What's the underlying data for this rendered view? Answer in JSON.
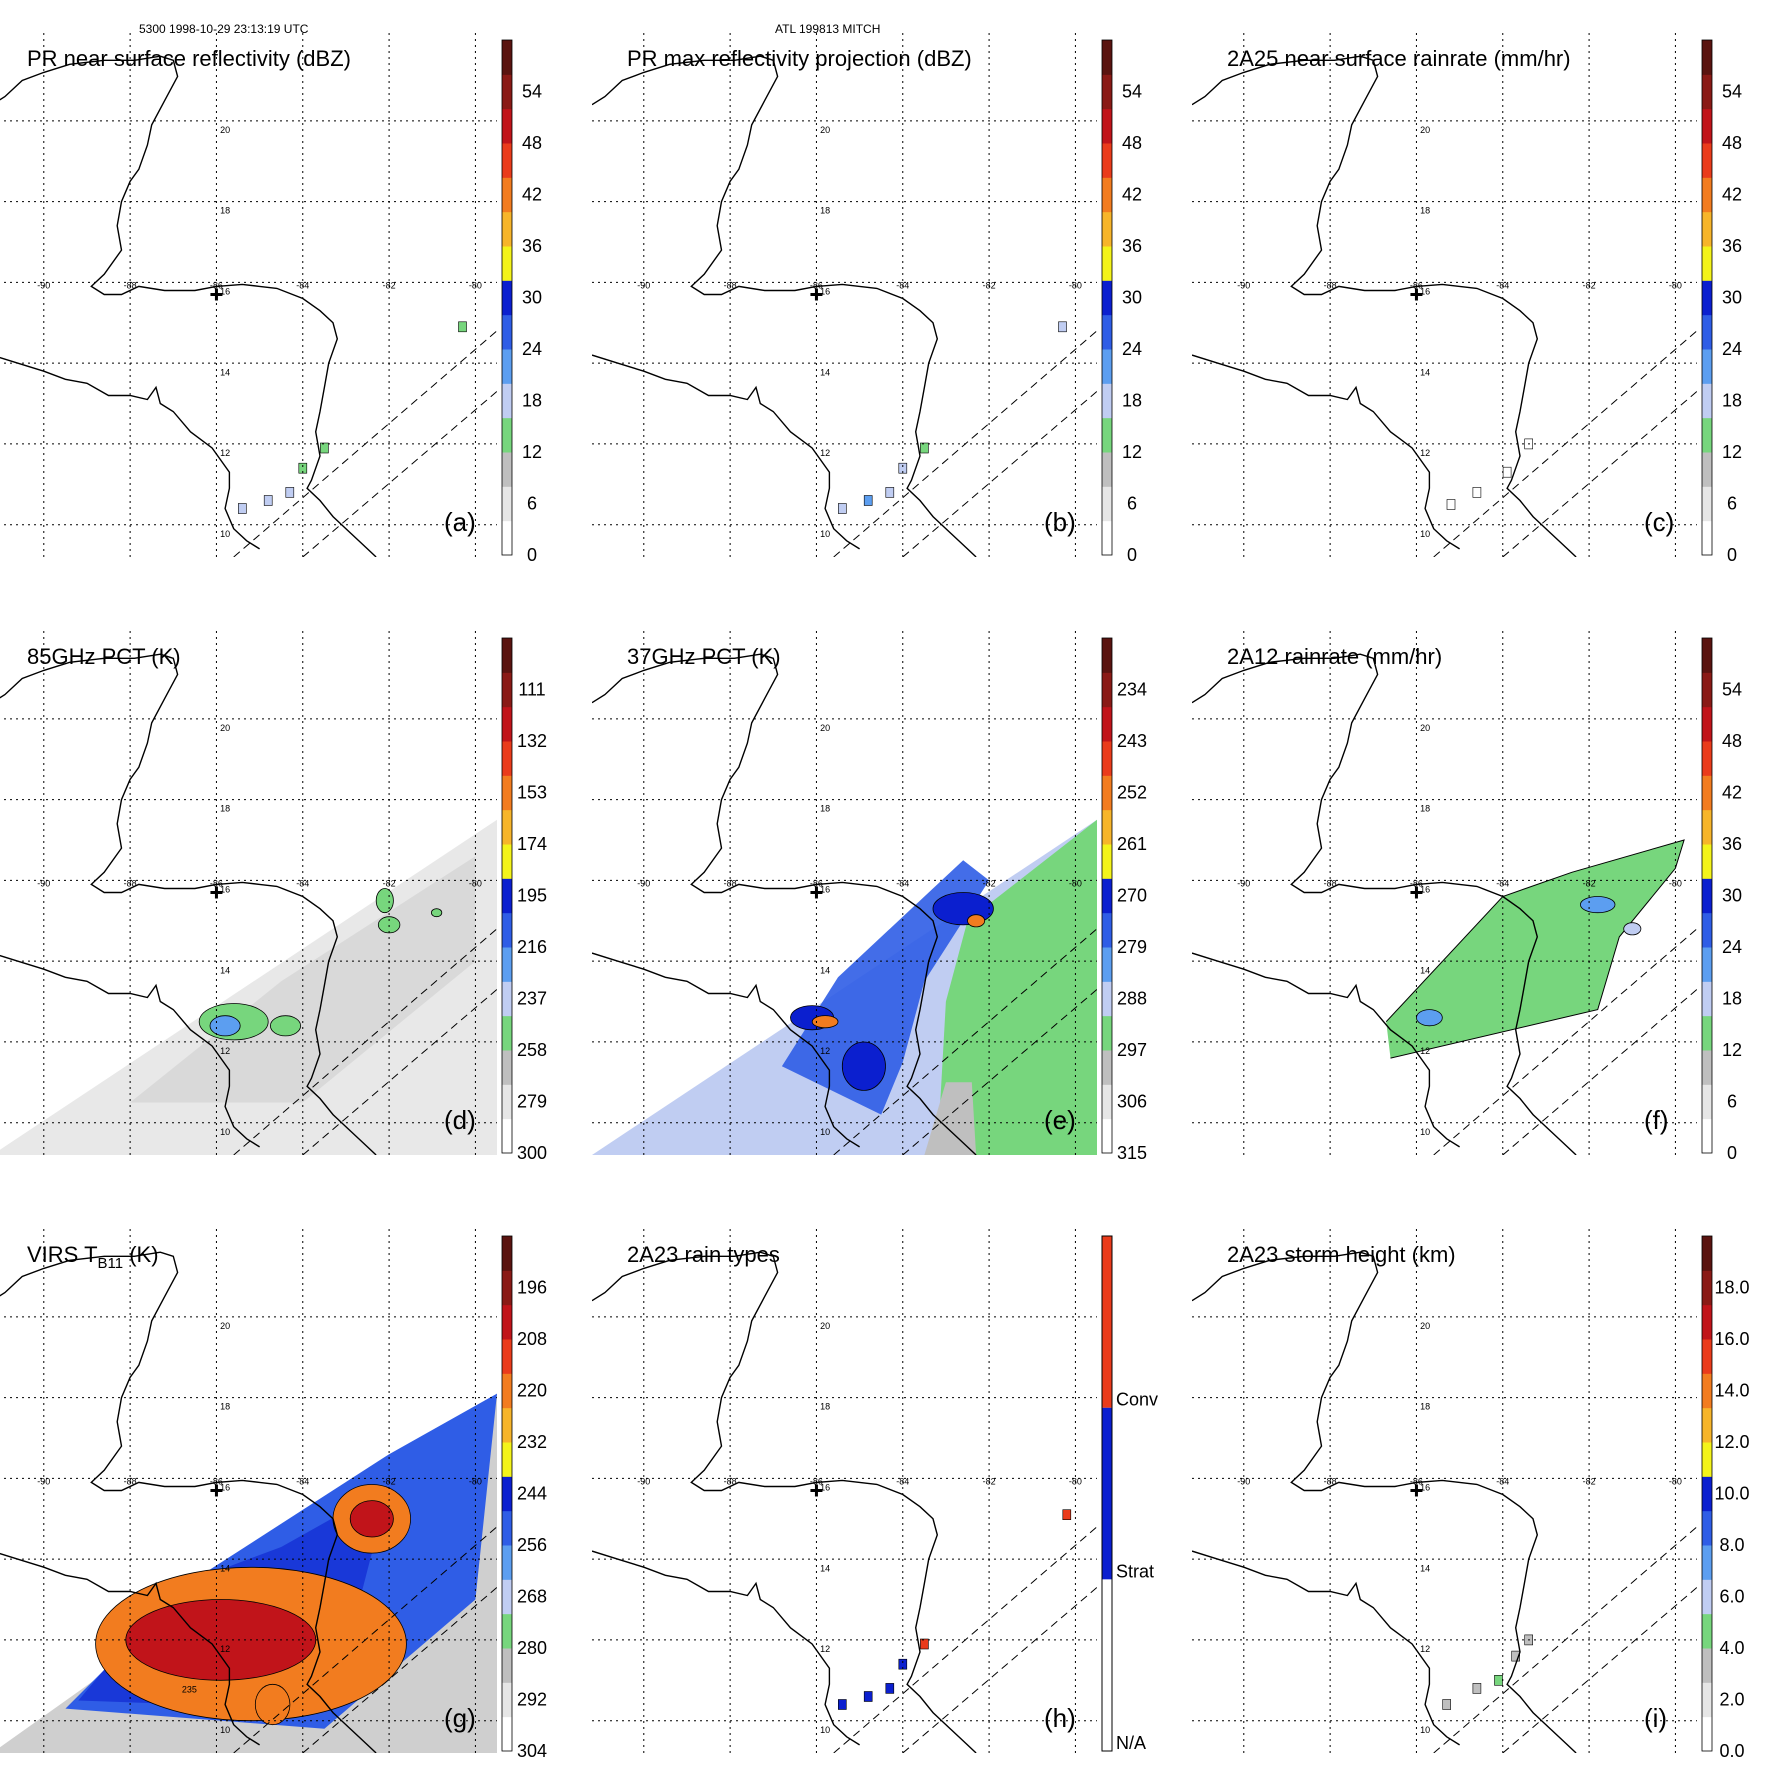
{
  "header": {
    "orbit_time": "5300 1998-10-29 23:13:19 UTC",
    "storm": "ATL 199813 MITCH"
  },
  "map": {
    "lon_labels": [
      "-90",
      "-88",
      "-86",
      "-84",
      "-82",
      "-80"
    ],
    "lat_labels": [
      "10",
      "12",
      "14",
      "16",
      "18",
      "20"
    ],
    "center_marker": "cross-icon"
  },
  "colors": {
    "white": "#ffffff",
    "gray_light": "#e6e6e6",
    "gray": "#bfbfbf",
    "green": "#77d67d",
    "blue_light": "#c0cdf2",
    "blue_mid": "#5c9ef0",
    "blue": "#2f5de6",
    "blue_dark": "#0b1fcf",
    "yellow": "#f4f41a",
    "orange_light": "#f7b52a",
    "orange": "#f27c1f",
    "red_orange": "#ea3b1b",
    "red": "#c1141a",
    "dark_red": "#8a1a16",
    "maroon": "#5a1410"
  },
  "chart_data": [
    {
      "id": "a",
      "type": "heatmap",
      "title": "PR near surface reflectivity (dBZ)",
      "label": "(a)",
      "colorbar_ticks": [
        "0",
        "6",
        "12",
        "18",
        "24",
        "30",
        "36",
        "42",
        "48",
        "54"
      ],
      "colorbar_range": [
        0,
        60
      ],
      "swath": "pr",
      "rain_cells": [
        {
          "lon": -85.4,
          "lat": 10.4,
          "value": 24
        },
        {
          "lon": -84.8,
          "lat": 10.6,
          "value": 27
        },
        {
          "lon": -84.3,
          "lat": 10.8,
          "value": 25
        },
        {
          "lon": -84.0,
          "lat": 11.4,
          "value": 20
        },
        {
          "lon": -83.5,
          "lat": 11.9,
          "value": 19
        },
        {
          "lon": -80.3,
          "lat": 14.9,
          "value": 22
        }
      ]
    },
    {
      "id": "b",
      "type": "heatmap",
      "title": "PR max reflectivity projection (dBZ)",
      "label": "(b)",
      "colorbar_ticks": [
        "0",
        "6",
        "12",
        "18",
        "24",
        "30",
        "36",
        "42",
        "48",
        "54"
      ],
      "colorbar_range": [
        0,
        60
      ],
      "swath": "pr",
      "rain_cells": [
        {
          "lon": -85.4,
          "lat": 10.4,
          "value": 27
        },
        {
          "lon": -84.8,
          "lat": 10.6,
          "value": 30
        },
        {
          "lon": -84.3,
          "lat": 10.8,
          "value": 28
        },
        {
          "lon": -84.0,
          "lat": 11.4,
          "value": 24
        },
        {
          "lon": -83.5,
          "lat": 11.9,
          "value": 22
        },
        {
          "lon": -80.3,
          "lat": 14.9,
          "value": 25
        }
      ]
    },
    {
      "id": "c",
      "type": "heatmap",
      "title": "2A25 near surface rainrate (mm/hr)",
      "label": "(c)",
      "colorbar_ticks": [
        "0",
        "6",
        "12",
        "18",
        "24",
        "30",
        "36",
        "42",
        "48",
        "54"
      ],
      "colorbar_range": [
        0,
        60
      ],
      "swath": "pr",
      "rain_cells": [
        {
          "lon": -85.2,
          "lat": 10.5,
          "value": 4
        },
        {
          "lon": -84.6,
          "lat": 10.8,
          "value": 5
        },
        {
          "lon": -83.9,
          "lat": 11.3,
          "value": 3
        },
        {
          "lon": -83.4,
          "lat": 12.0,
          "value": 3
        }
      ]
    },
    {
      "id": "d",
      "type": "heatmap",
      "title": "85GHz PCT (K)",
      "label": "(d)",
      "colorbar_ticks": [
        "300",
        "279",
        "258",
        "237",
        "216",
        "195",
        "174",
        "153",
        "132",
        "111"
      ],
      "colorbar_range": [
        300,
        90
      ],
      "swath": "tmi",
      "field": "pct85"
    },
    {
      "id": "e",
      "type": "heatmap",
      "title": "37GHz PCT (K)",
      "label": "(e)",
      "colorbar_ticks": [
        "315",
        "306",
        "297",
        "288",
        "279",
        "270",
        "261",
        "252",
        "243",
        "234"
      ],
      "colorbar_range": [
        315,
        225
      ],
      "swath": "tmi",
      "field": "pct37"
    },
    {
      "id": "f",
      "type": "heatmap",
      "title": "2A12 rainrate (mm/hr)",
      "label": "(f)",
      "colorbar_ticks": [
        "0",
        "6",
        "12",
        "18",
        "24",
        "30",
        "36",
        "42",
        "48",
        "54"
      ],
      "colorbar_range": [
        0,
        60
      ],
      "swath": "tmi",
      "field": "rain2a12"
    },
    {
      "id": "g",
      "type": "heatmap",
      "title": "VIRS T",
      "title_sub": "B11",
      "title_suffix": " (K)",
      "label": "(g)",
      "colorbar_ticks": [
        "304",
        "292",
        "280",
        "268",
        "256",
        "244",
        "232",
        "220",
        "208",
        "196"
      ],
      "colorbar_range": [
        316,
        184
      ],
      "swath": "virs",
      "field": "tb11",
      "contour_label": "235"
    },
    {
      "id": "h",
      "type": "heatmap",
      "title": "2A23 rain types",
      "label": "(h)",
      "colorbar_ticks": [
        "N/A",
        "Strat",
        "Conv"
      ],
      "categories": [
        "N/A",
        "Strat",
        "Conv"
      ],
      "swath": "pr",
      "rain_cells": [
        {
          "lon": -85.4,
          "lat": 10.4,
          "value": "Strat"
        },
        {
          "lon": -84.8,
          "lat": 10.6,
          "value": "Strat"
        },
        {
          "lon": -84.3,
          "lat": 10.8,
          "value": "Strat"
        },
        {
          "lon": -84.0,
          "lat": 11.4,
          "value": "Strat"
        },
        {
          "lon": -83.5,
          "lat": 11.9,
          "value": "Conv"
        },
        {
          "lon": -80.2,
          "lat": 15.1,
          "value": "Conv"
        }
      ]
    },
    {
      "id": "i",
      "type": "heatmap",
      "title": "2A23 storm height (km)",
      "label": "(i)",
      "colorbar_ticks": [
        "0.0",
        "2.0",
        "4.0",
        "6.0",
        "8.0",
        "10.0",
        "12.0",
        "14.0",
        "16.0",
        "18.0"
      ],
      "colorbar_range": [
        0,
        20
      ],
      "swath": "pr",
      "rain_cells": [
        {
          "lon": -85.3,
          "lat": 10.4,
          "value": 4.5
        },
        {
          "lon": -84.6,
          "lat": 10.8,
          "value": 5.5
        },
        {
          "lon": -84.1,
          "lat": 11.0,
          "value": 7.5
        },
        {
          "lon": -83.7,
          "lat": 11.6,
          "value": 5.0
        },
        {
          "lon": -83.4,
          "lat": 12.0,
          "value": 4.5
        }
      ]
    }
  ]
}
